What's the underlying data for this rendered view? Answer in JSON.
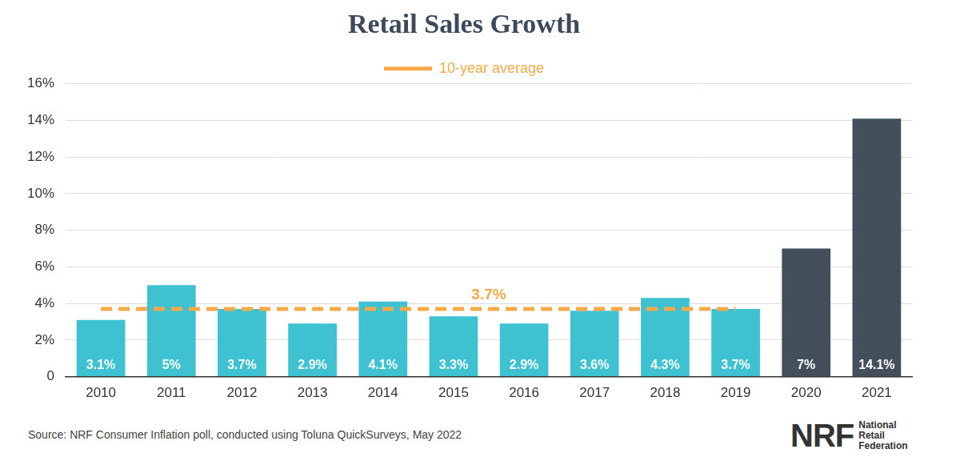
{
  "chart_data": {
    "type": "bar",
    "title": "Retail Sales Growth",
    "categories": [
      "2010",
      "2011",
      "2012",
      "2013",
      "2014",
      "2015",
      "2016",
      "2017",
      "2018",
      "2019",
      "2020",
      "2021"
    ],
    "series": [
      {
        "type": "bar",
        "values": [
          3.1,
          5,
          3.7,
          2.9,
          4.1,
          3.3,
          2.9,
          3.6,
          4.3,
          3.7,
          7,
          14.1
        ],
        "value_labels": [
          "3.1%",
          "5%",
          "3.7%",
          "2.9%",
          "4.1%",
          "3.3%",
          "2.9%",
          "3.6%",
          "4.3%",
          "3.7%",
          "7%",
          "14.1%"
        ],
        "colors": [
          "#3ec1d0",
          "#3ec1d0",
          "#3ec1d0",
          "#3ec1d0",
          "#3ec1d0",
          "#3ec1d0",
          "#3ec1d0",
          "#3ec1d0",
          "#3ec1d0",
          "#3ec1d0",
          "#444f5c",
          "#444f5c"
        ]
      },
      {
        "type": "line",
        "name": "10-year average",
        "values": [
          3.7,
          3.7,
          3.7,
          3.7,
          3.7,
          3.7,
          3.7,
          3.7,
          3.7,
          3.7,
          null,
          null
        ],
        "color": "#f5a947",
        "line_style": "dashed"
      }
    ],
    "annotations": [
      {
        "text": "3.7%",
        "x": "2015",
        "y": 3.7
      }
    ],
    "ylim": [
      0,
      16
    ],
    "yticks": [
      0,
      {
        "value": 2,
        "label": "2%"
      },
      {
        "value": 4,
        "label": "4%"
      },
      {
        "value": 6,
        "label": "6%"
      },
      {
        "value": 8,
        "label": "8%"
      },
      {
        "value": 10,
        "label": "10%"
      },
      {
        "value": 12,
        "label": "12%"
      },
      {
        "value": 14,
        "label": "14%"
      },
      {
        "value": 16,
        "label": "16%"
      }
    ],
    "grid": true,
    "legend": "top",
    "data_labels": true,
    "source": "Source: NRF Consumer Inflation poll, conducted using Toluna QuickSurveys, May 2022",
    "logo": {
      "mark": "NRF",
      "text": [
        "National",
        "Retail",
        "Federation"
      ]
    }
  }
}
